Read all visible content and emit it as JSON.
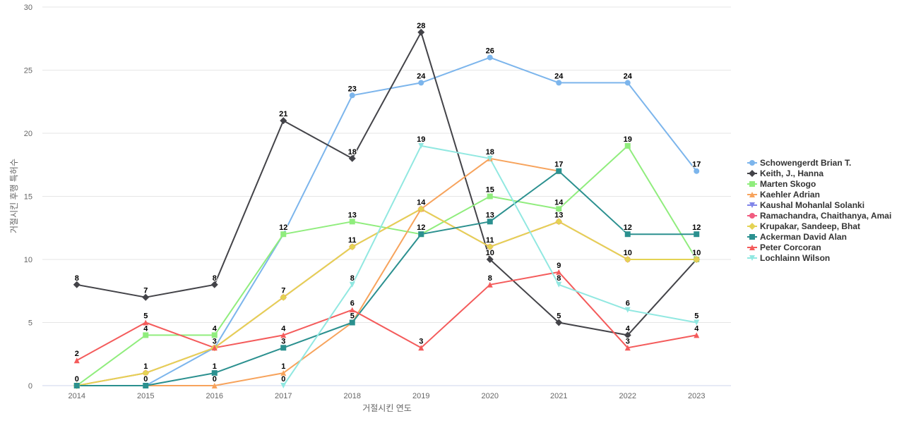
{
  "chart_data": {
    "type": "line",
    "title": "",
    "xlabel": "거절시킨 연도",
    "ylabel": "거절시킨 후행 특허수",
    "ylim": [
      0,
      30
    ],
    "yticks": [
      0,
      5,
      10,
      15,
      20,
      25,
      30
    ],
    "grid": true,
    "legend_position": "right",
    "x": [
      "2014",
      "2015",
      "2016",
      "2017",
      "2018",
      "2019",
      "2020",
      "2021",
      "2022",
      "2023"
    ],
    "series": [
      {
        "name": "Schowengerdt Brian T.",
        "color": "#7cb5ec",
        "marker": "circle",
        "values": [
          0,
          0,
          3,
          12,
          23,
          24,
          26,
          24,
          24,
          17
        ]
      },
      {
        "name": "Keith, J., Hanna",
        "color": "#434348",
        "marker": "diamond",
        "values": [
          8,
          7,
          8,
          21,
          18,
          28,
          10,
          5,
          4,
          10
        ]
      },
      {
        "name": "Marten Skogo",
        "color": "#90ed7d",
        "marker": "square",
        "values": [
          0,
          4,
          4,
          12,
          13,
          12,
          15,
          14,
          19,
          10
        ]
      },
      {
        "name": "Kaehler Adrian",
        "color": "#f7a35c",
        "marker": "triangle",
        "values": [
          0,
          0,
          0,
          1,
          5,
          14,
          18,
          17,
          null,
          null
        ]
      },
      {
        "name": "Kaushal Mohanlal Solanki",
        "color": "#8085e9",
        "marker": "triangle-down",
        "values": [
          null,
          null,
          null,
          null,
          null,
          null,
          null,
          null,
          null,
          null
        ]
      },
      {
        "name": "Ramachandra, Chaithanya, Amai",
        "color": "#f15c80",
        "marker": "circle",
        "values": [
          0,
          1,
          3,
          7,
          11,
          14,
          11,
          13,
          10,
          10
        ]
      },
      {
        "name": "Krupakar, Sandeep, Bhat",
        "color": "#e4d354",
        "marker": "diamond",
        "values": [
          0,
          1,
          3,
          7,
          11,
          14,
          11,
          13,
          10,
          10
        ]
      },
      {
        "name": "Ackerman David Alan",
        "color": "#2b908f",
        "marker": "square",
        "values": [
          0,
          0,
          1,
          3,
          5,
          12,
          13,
          17,
          12,
          12
        ]
      },
      {
        "name": "Peter Corcoran",
        "color": "#f45b5b",
        "marker": "triangle",
        "values": [
          2,
          5,
          3,
          4,
          6,
          3,
          8,
          9,
          3,
          4
        ]
      },
      {
        "name": "Lochlainn Wilson",
        "color": "#91e8e1",
        "marker": "triangle-down",
        "values": [
          null,
          null,
          null,
          0,
          8,
          19,
          18,
          8,
          6,
          5
        ]
      }
    ]
  }
}
